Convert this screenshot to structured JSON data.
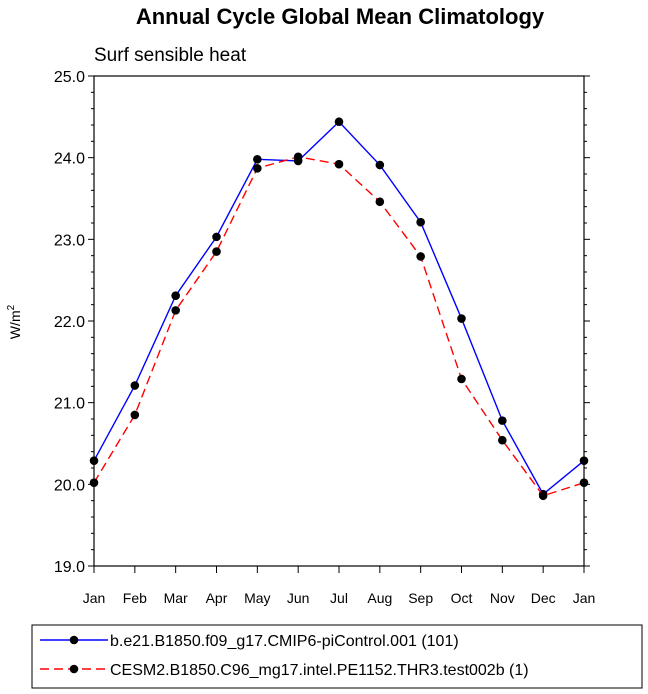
{
  "chart_data": {
    "type": "line",
    "title": "Annual Cycle Global Mean Climatology",
    "subtitle": "Surf sensible heat",
    "ylabel": "W/m",
    "ylabel_superscript": "2",
    "xlabel": "",
    "categories": [
      "Jan",
      "Feb",
      "Mar",
      "Apr",
      "May",
      "Jun",
      "Jul",
      "Aug",
      "Sep",
      "Oct",
      "Nov",
      "Dec",
      "Jan"
    ],
    "ylim": [
      19.0,
      25.0
    ],
    "yticks": [
      "19.0",
      "20.0",
      "21.0",
      "22.0",
      "23.0",
      "24.0",
      "25.0"
    ],
    "series": [
      {
        "name": "b.e21.B1850.f09_g17.CMIP6-piControl.001 (101)",
        "color": "#0000ff",
        "dash": "solid",
        "values": [
          20.29,
          21.21,
          22.31,
          23.03,
          23.98,
          23.96,
          24.44,
          23.91,
          23.21,
          22.03,
          20.78,
          19.88,
          20.29
        ]
      },
      {
        "name": "CESM2.B1850.C96_mg17.intel.PE1152.THR3.test002b (1)",
        "color": "#ff0000",
        "dash": "dashed",
        "values": [
          20.02,
          20.85,
          22.13,
          22.85,
          23.87,
          24.01,
          23.92,
          23.46,
          22.79,
          21.29,
          20.54,
          19.86,
          20.02
        ]
      }
    ],
    "legend_position": "bottom"
  }
}
